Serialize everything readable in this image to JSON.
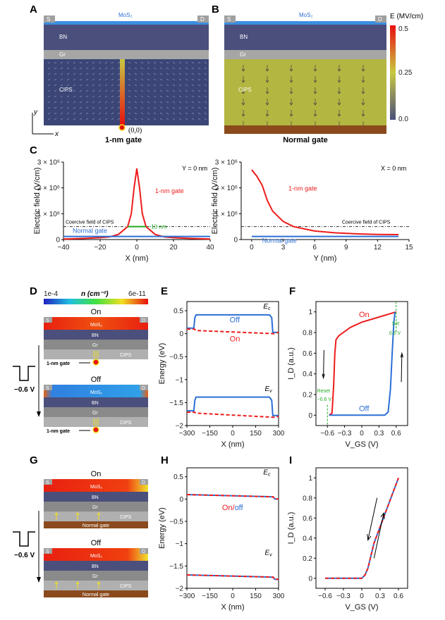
{
  "panels": {
    "A": "A",
    "B": "B",
    "C": "C",
    "D": "D",
    "E": "E",
    "F": "F",
    "G": "G",
    "H": "H",
    "I": "I"
  },
  "layers": {
    "s": "S",
    "d": "D",
    "mos2": "MoS₂",
    "bn": "BN",
    "gr": "Gr",
    "cips": "CIPS"
  },
  "panelA": {
    "caption": "1-nm gate",
    "origin": "(0,0)",
    "axis_x": "x",
    "axis_y": "y"
  },
  "panelB": {
    "caption": "Normal gate"
  },
  "colorbar": {
    "title": "E (MV/cm)",
    "ticks": [
      "0.5",
      "0.25",
      "0.0"
    ]
  },
  "panelD": {
    "scale_title": "n (cm⁻²)",
    "scale_min": "1e-4",
    "scale_max": "6e-11",
    "on": "On",
    "off": "Off",
    "gate": "1-nm gate",
    "voltage": "−0.6 V"
  },
  "panelG": {
    "on": "On",
    "off": "Off",
    "gate": "Normal gate",
    "voltage": "−0.6 V"
  },
  "colors": {
    "red": "#ee1c1c",
    "blue": "#2b6fd6",
    "green": "#22aa22",
    "bn": "#4b4f7c",
    "gr": "#a6a6a6",
    "cips_a": "#3b4676",
    "cips_b": "#b3b640",
    "substrate": "#8b4a1c"
  },
  "chart_data": [
    {
      "id": "C1",
      "type": "line",
      "xlabel": "X (nm)",
      "ylabel": "Electric field (V/cm)",
      "annotation": "Y = 0 nm",
      "xlim": [
        -40,
        40
      ],
      "ylim": [
        0,
        3000000
      ],
      "xticks": [
        -40,
        -20,
        0,
        20,
        40
      ],
      "yticks": [
        "0",
        "1 × 10⁶",
        "2 × 10⁶",
        "3 × 10⁶"
      ],
      "ytick_values": [
        0,
        1000000,
        2000000,
        3000000
      ],
      "coercive_label": "Coercive field of CIPS",
      "coercive_value": 500000,
      "width_label": "~10 nm",
      "series": [
        {
          "name": "1-nm gate",
          "color": "#ee1c1c",
          "x": [
            -40,
            -30,
            -20,
            -15,
            -10,
            -5,
            -3,
            -1.5,
            0,
            1.5,
            3,
            5,
            10,
            15,
            20,
            30,
            40
          ],
          "y": [
            20000,
            40000,
            70000,
            100000,
            200000,
            500000,
            1000000,
            2000000,
            2750000,
            2000000,
            1000000,
            500000,
            200000,
            100000,
            70000,
            40000,
            20000
          ]
        },
        {
          "name": "Normal gate",
          "color": "#2b6fd6",
          "x": [
            -40,
            40
          ],
          "y": [
            120000,
            120000
          ]
        }
      ]
    },
    {
      "id": "C2",
      "type": "line",
      "xlabel": "Y (nm)",
      "ylabel": "Electric field (V/cm)",
      "annotation": "X = 0 nm",
      "xlim": [
        -1,
        15
      ],
      "ylim": [
        0,
        3000000
      ],
      "xticks": [
        0,
        3,
        6,
        9,
        12,
        15
      ],
      "yticks": [
        "0",
        "1 × 10⁶",
        "2 × 10⁶",
        "3 × 10⁶"
      ],
      "ytick_values": [
        0,
        1000000,
        2000000,
        3000000
      ],
      "coercive_label": "Coercive field of CIPS",
      "coercive_value": 500000,
      "series": [
        {
          "name": "1-nm gate",
          "color": "#ee1c1c",
          "x": [
            0,
            0.5,
            1,
            1.5,
            2,
            3,
            4,
            6,
            8,
            10,
            12,
            14
          ],
          "y": [
            2700000,
            2450000,
            2100000,
            1500000,
            1100000,
            700000,
            500000,
            330000,
            260000,
            220000,
            200000,
            190000
          ]
        },
        {
          "name": "Normal gate",
          "color": "#2b6fd6",
          "x": [
            0,
            14
          ],
          "y": [
            120000,
            120000
          ]
        }
      ]
    },
    {
      "id": "E",
      "type": "line",
      "xlabel": "X (nm)",
      "ylabel": "Energy (eV)",
      "xlim": [
        -300,
        300
      ],
      "ylim": [
        -2,
        0.7
      ],
      "xticks": [
        -300,
        -150,
        0,
        150,
        300
      ],
      "yticks": [
        "0.5",
        "0",
        "−0.5",
        "−1",
        "−1.5",
        "−2"
      ],
      "ytick_values": [
        0.5,
        0,
        -0.5,
        -1,
        -1.5,
        -2
      ],
      "labels": {
        "ec": "E",
        "ec_sub": "c",
        "ev": "E",
        "ev_sub": "v",
        "off": "Off",
        "on": "On"
      },
      "series": [
        {
          "name": "Off",
          "color": "#2b6fd6",
          "x": [
            -300,
            -255,
            -248,
            -240,
            240,
            255,
            262,
            300
          ],
          "y": [
            0.12,
            0.12,
            0.35,
            0.41,
            0.41,
            0.35,
            0.03,
            0.03
          ]
        },
        {
          "name": "On",
          "color": "#ee1c1c",
          "dash": true,
          "x": [
            -300,
            -250,
            -240,
            270,
            300
          ],
          "y": [
            0.1,
            0.1,
            0.07,
            0.0,
            0.03
          ]
        },
        {
          "name": "Off",
          "color": "#2b6fd6",
          "x": [
            -300,
            -255,
            -248,
            -240,
            240,
            255,
            262,
            300
          ],
          "y": [
            -1.68,
            -1.68,
            -1.45,
            -1.38,
            -1.38,
            -1.45,
            -1.78,
            -1.78
          ]
        },
        {
          "name": "On",
          "color": "#ee1c1c",
          "dash": true,
          "x": [
            -300,
            -250,
            -240,
            270,
            300
          ],
          "y": [
            -1.71,
            -1.71,
            -1.73,
            -1.82,
            -1.8
          ]
        }
      ]
    },
    {
      "id": "F",
      "type": "line",
      "xlabel": "V_GS (V)",
      "ylabel": "I_D (a.u.)",
      "xlim": [
        -0.8,
        0.8
      ],
      "ylim": [
        -0.1,
        1.1
      ],
      "xticks": [
        -0.6,
        -0.3,
        0,
        0.3,
        0.6
      ],
      "yticks": [
        "0",
        "0.2",
        "0.4",
        "0.6",
        "0.8",
        "1"
      ],
      "ytick_values": [
        0,
        0.2,
        0.4,
        0.6,
        0.8,
        1
      ],
      "labels": {
        "on": "On",
        "off": "Off",
        "set": "Set",
        "set_v": "0.6 V",
        "reset": "Reset",
        "reset_v": "−0.6 V"
      },
      "series": [
        {
          "name": "On",
          "color": "#ee1c1c",
          "x": [
            -0.57,
            -0.52,
            -0.49,
            -0.47,
            -0.45,
            -0.4,
            -0.2,
            0,
            0.3,
            0.6
          ],
          "y": [
            0,
            0.02,
            0.3,
            0.6,
            0.73,
            0.77,
            0.85,
            0.9,
            0.95,
            1.0
          ]
        },
        {
          "name": "Off",
          "color": "#2b6fd6",
          "x": [
            -0.57,
            0.4,
            0.46,
            0.5,
            0.53,
            0.56,
            0.58
          ],
          "y": [
            0,
            0,
            0.03,
            0.25,
            0.6,
            0.9,
            1.0
          ]
        }
      ]
    },
    {
      "id": "H",
      "type": "line",
      "xlabel": "X (nm)",
      "ylabel": "Energy (eV)",
      "xlim": [
        -300,
        300
      ],
      "ylim": [
        -2,
        0.7
      ],
      "xticks": [
        -300,
        -150,
        0,
        150,
        300
      ],
      "yticks": [
        "0.5",
        "0",
        "−0.5",
        "−1",
        "−1.5",
        "−2"
      ],
      "ytick_values": [
        0.5,
        0,
        -0.5,
        -1,
        -1.5,
        -2
      ],
      "labels": {
        "ec": "E",
        "ec_sub": "c",
        "ev": "E",
        "ev_sub": "v",
        "onoff_on": "On/",
        "onoff_off": "off"
      },
      "series": [
        {
          "name": "On",
          "color": "#2b6fd6",
          "x": [
            -300,
            265,
            275,
            300
          ],
          "y": [
            0.1,
            0.05,
            0.0,
            0.0
          ]
        },
        {
          "name": "off",
          "color": "#ee1c1c",
          "dash": true,
          "x": [
            -300,
            265,
            275,
            300
          ],
          "y": [
            0.1,
            0.05,
            0.0,
            0.0
          ]
        },
        {
          "name": "On",
          "color": "#2b6fd6",
          "x": [
            -300,
            265,
            275,
            300
          ],
          "y": [
            -1.7,
            -1.75,
            -1.8,
            -1.8
          ]
        },
        {
          "name": "off",
          "color": "#ee1c1c",
          "dash": true,
          "x": [
            -300,
            265,
            275,
            300
          ],
          "y": [
            -1.7,
            -1.75,
            -1.8,
            -1.8
          ]
        }
      ]
    },
    {
      "id": "I",
      "type": "line",
      "xlabel": "V_GS (V)",
      "ylabel": "I_D (a.u.)",
      "xlim": [
        -0.75,
        0.75
      ],
      "ylim": [
        -0.1,
        1.1
      ],
      "xticks": [
        -0.6,
        -0.3,
        0,
        0.3,
        0.6
      ],
      "yticks": [
        "0",
        "0.2",
        "0.4",
        "0.6",
        "0.8",
        "1"
      ],
      "ytick_values": [
        0,
        0.2,
        0.4,
        0.6,
        0.8,
        1
      ],
      "series": [
        {
          "color": "#2b6fd6",
          "x": [
            -0.6,
            0,
            0.05,
            0.1,
            0.2,
            0.6
          ],
          "y": [
            0,
            0,
            0.03,
            0.1,
            0.35,
            1.0
          ]
        },
        {
          "color": "#ee1c1c",
          "dash": true,
          "x": [
            -0.6,
            0,
            0.05,
            0.1,
            0.2,
            0.6
          ],
          "y": [
            0,
            0,
            0.03,
            0.1,
            0.35,
            1.0
          ]
        }
      ]
    }
  ]
}
